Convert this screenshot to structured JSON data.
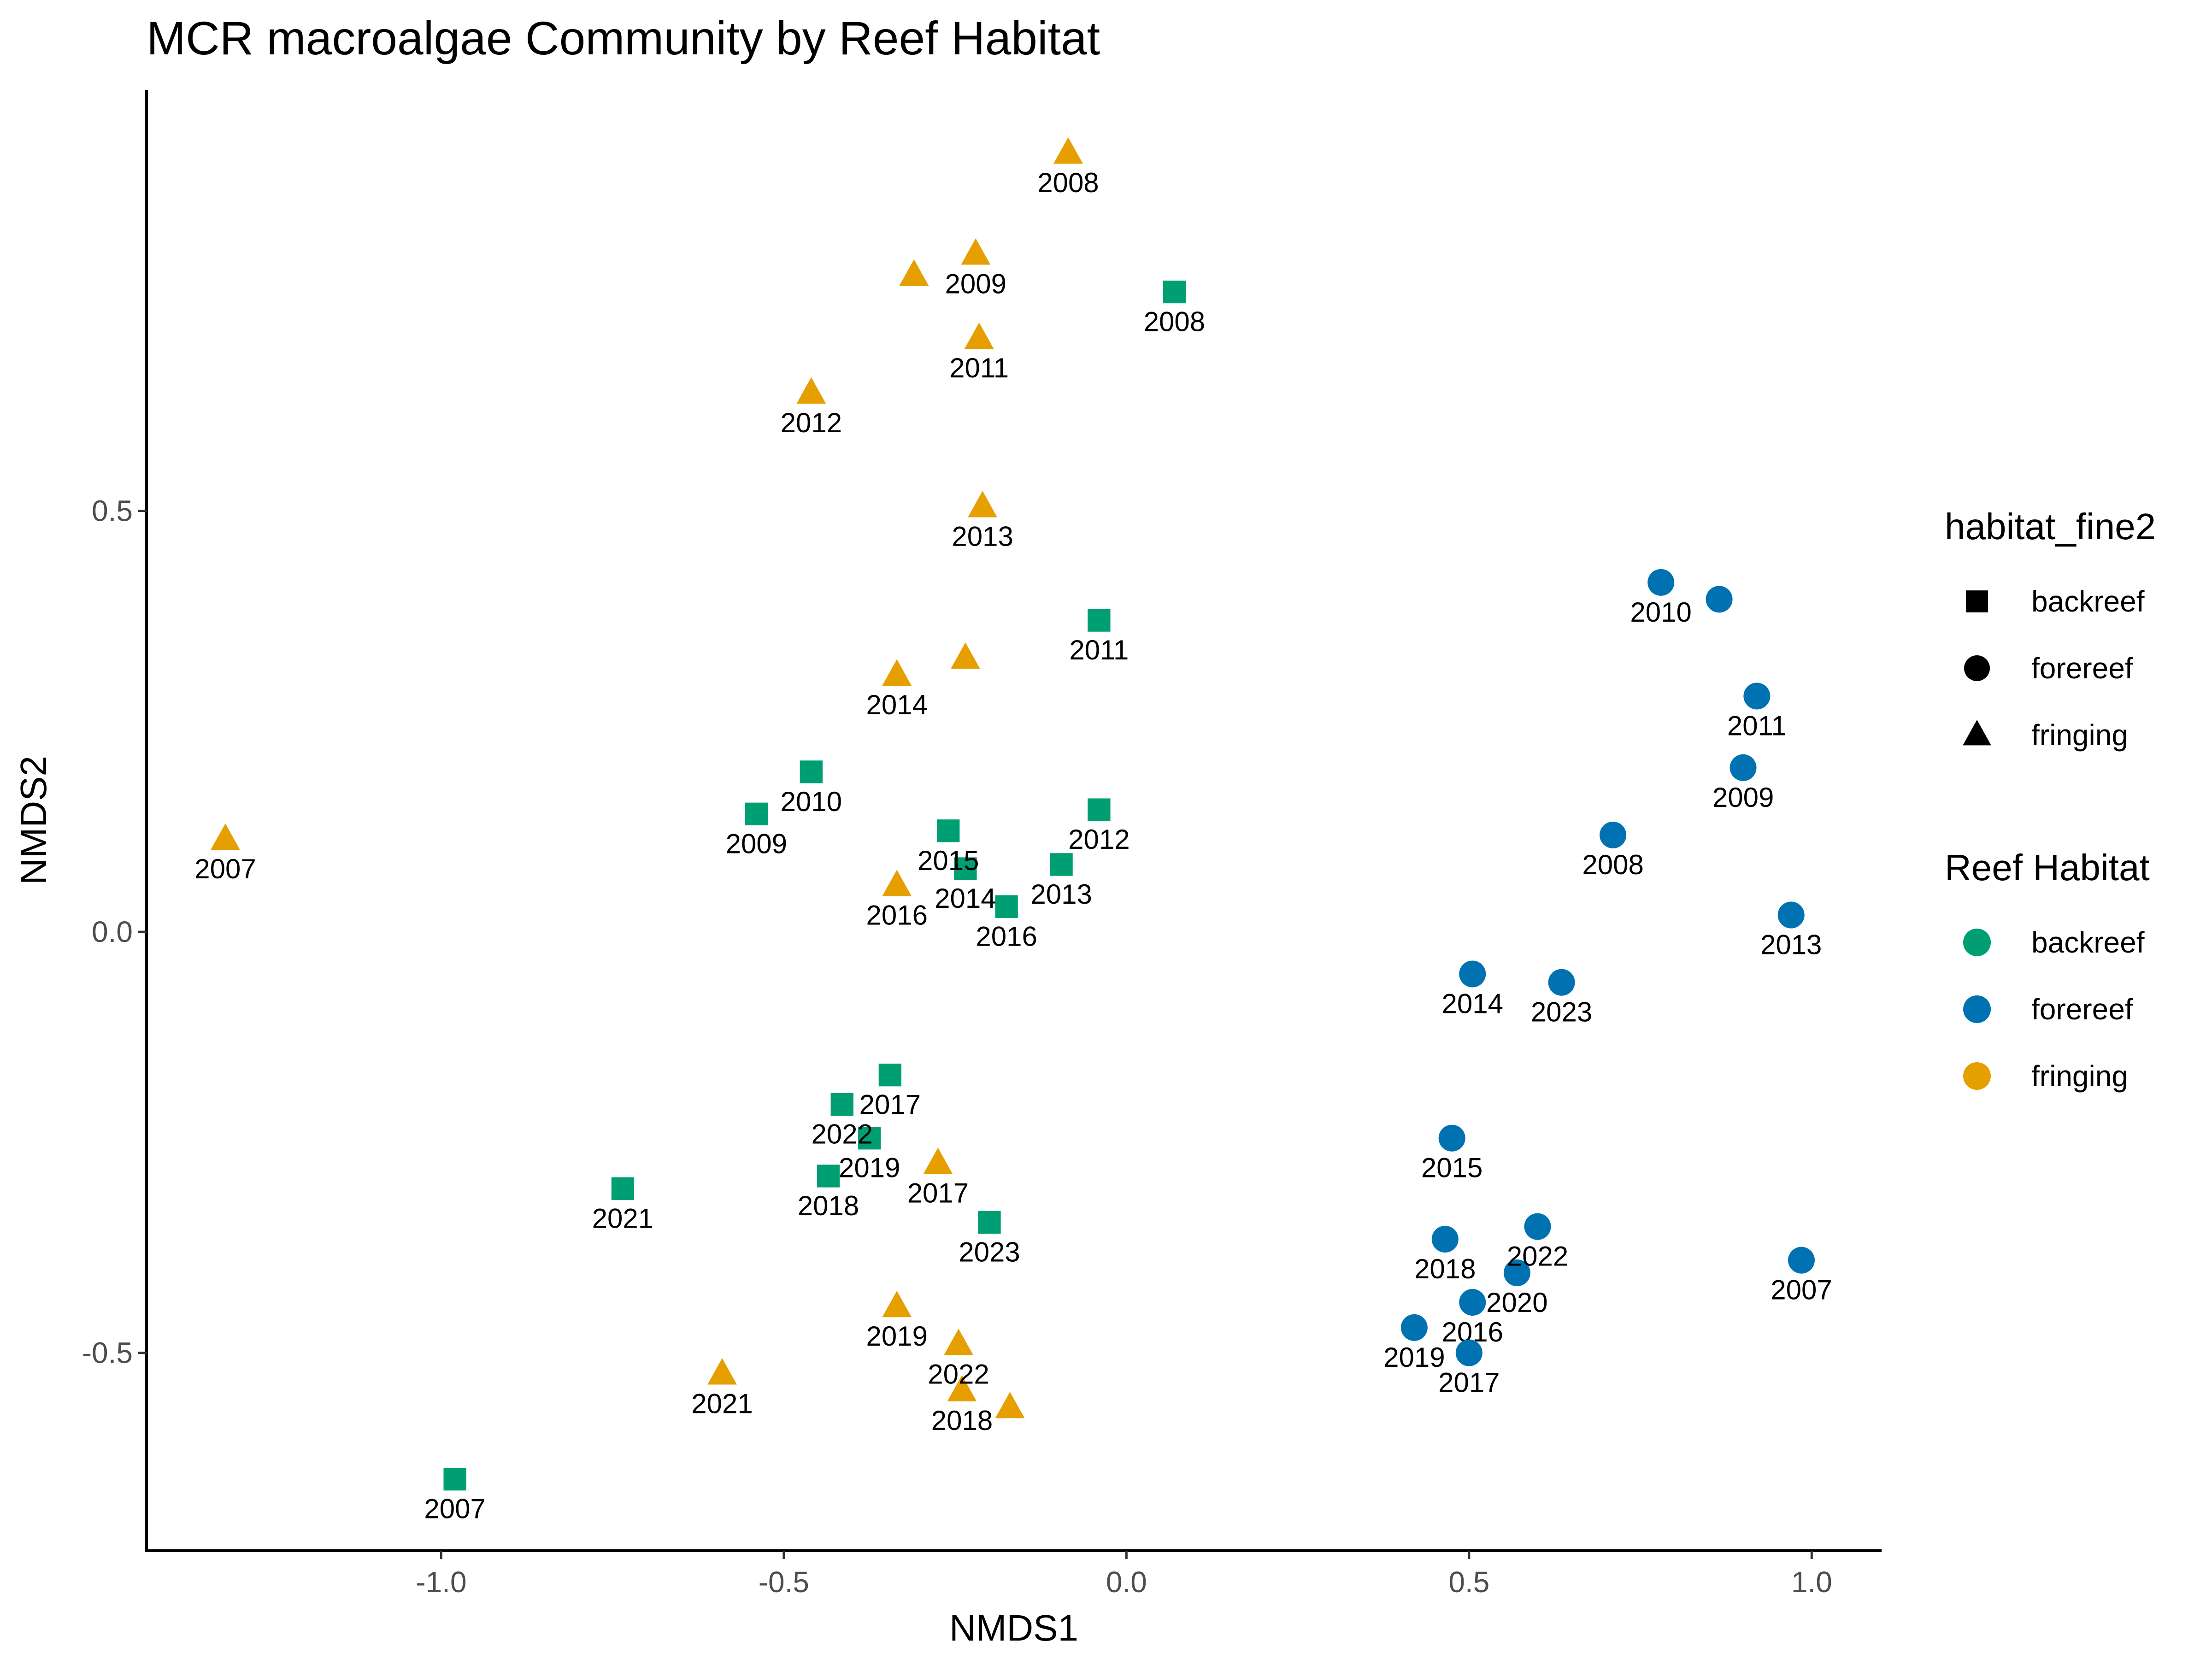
{
  "chart_data": {
    "type": "scatter",
    "title": "MCR macroalgae Community by Reef Habitat",
    "xlabel": "NMDS1",
    "ylabel": "NMDS2",
    "xlim": [
      -1.43,
      1.1
    ],
    "ylim": [
      -0.735,
      1.0
    ],
    "xticks": [
      -1.0,
      -0.5,
      0.0,
      0.5,
      1.0
    ],
    "xtick_labels": [
      "-1.0",
      "-0.5",
      "0.0",
      "0.5",
      "1.0"
    ],
    "yticks": [
      -0.5,
      0.0,
      0.5
    ],
    "ytick_labels": [
      "-0.5",
      "0.0",
      "0.5"
    ],
    "grid": false,
    "legend_position": "right",
    "colors": {
      "backreef": "#009E73",
      "forereef": "#0072B2",
      "fringing": "#E69F00"
    },
    "legends": [
      {
        "title": "habitat_fine2",
        "kind": "shape",
        "entries": [
          {
            "label": "backreef",
            "shape": "square"
          },
          {
            "label": "forereef",
            "shape": "circle"
          },
          {
            "label": "fringing",
            "shape": "triangle"
          }
        ]
      },
      {
        "title": "Reef Habitat",
        "kind": "color",
        "entries": [
          {
            "label": "backreef",
            "color": "#009E73"
          },
          {
            "label": "forereef",
            "color": "#0072B2"
          },
          {
            "label": "fringing",
            "color": "#E69F00"
          }
        ]
      }
    ],
    "series": [
      {
        "name": "backreef",
        "shape": "square",
        "color": "#009E73",
        "points": [
          {
            "x": -0.98,
            "y": -0.65,
            "label": "2007"
          },
          {
            "x": 0.07,
            "y": 0.76,
            "label": "2008"
          },
          {
            "x": -0.54,
            "y": 0.14,
            "label": "2009"
          },
          {
            "x": -0.46,
            "y": 0.19,
            "label": "2010"
          },
          {
            "x": -0.04,
            "y": 0.37,
            "label": "2011"
          },
          {
            "x": -0.04,
            "y": 0.145,
            "label": "2012"
          },
          {
            "x": -0.095,
            "y": 0.08,
            "label": "2013"
          },
          {
            "x": -0.235,
            "y": 0.075,
            "label": "2014"
          },
          {
            "x": -0.26,
            "y": 0.12,
            "label": "2015"
          },
          {
            "x": -0.175,
            "y": 0.03,
            "label": "2016"
          },
          {
            "x": -0.345,
            "y": -0.17,
            "label": "2017"
          },
          {
            "x": -0.435,
            "y": -0.29,
            "label": "2018"
          },
          {
            "x": -0.375,
            "y": -0.245,
            "label": "2019"
          },
          {
            "x": -0.735,
            "y": -0.305,
            "label": "2021"
          },
          {
            "x": -0.415,
            "y": -0.205,
            "label": "2022"
          },
          {
            "x": -0.2,
            "y": -0.345,
            "label": "2023"
          }
        ]
      },
      {
        "name": "forereef",
        "shape": "circle",
        "color": "#0072B2",
        "points": [
          {
            "x": 0.985,
            "y": -0.39,
            "label": "2007"
          },
          {
            "x": 0.71,
            "y": 0.115,
            "label": "2008"
          },
          {
            "x": 0.9,
            "y": 0.195,
            "label": "2009"
          },
          {
            "x": 0.78,
            "y": 0.415,
            "label": "2010"
          },
          {
            "x": 0.865,
            "y": 0.395,
            "label": ""
          },
          {
            "x": 0.92,
            "y": 0.28,
            "label": "2011"
          },
          {
            "x": 0.97,
            "y": 0.02,
            "label": "2013"
          },
          {
            "x": 0.505,
            "y": -0.05,
            "label": "2014"
          },
          {
            "x": 0.635,
            "y": -0.06,
            "label": "2023"
          },
          {
            "x": 0.475,
            "y": -0.245,
            "label": "2015"
          },
          {
            "x": 0.505,
            "y": -0.44,
            "label": "2016"
          },
          {
            "x": 0.5,
            "y": -0.5,
            "label": "2017"
          },
          {
            "x": 0.465,
            "y": -0.365,
            "label": "2018"
          },
          {
            "x": 0.42,
            "y": -0.47,
            "label": "2019"
          },
          {
            "x": 0.57,
            "y": -0.405,
            "label": "2020"
          },
          {
            "x": 0.6,
            "y": -0.35,
            "label": "2022"
          }
        ]
      },
      {
        "name": "fringing",
        "shape": "triangle",
        "color": "#E69F00",
        "points": [
          {
            "x": -1.315,
            "y": 0.11,
            "label": "2007"
          },
          {
            "x": -0.085,
            "y": 0.925,
            "label": "2008"
          },
          {
            "x": -0.22,
            "y": 0.805,
            "label": "2009"
          },
          {
            "x": -0.31,
            "y": 0.78,
            "label": ""
          },
          {
            "x": -0.215,
            "y": 0.705,
            "label": "2011"
          },
          {
            "x": -0.46,
            "y": 0.64,
            "label": "2012"
          },
          {
            "x": -0.21,
            "y": 0.505,
            "label": "2013"
          },
          {
            "x": -0.335,
            "y": 0.305,
            "label": "2014"
          },
          {
            "x": -0.235,
            "y": 0.325,
            "label": ""
          },
          {
            "x": -0.335,
            "y": 0.055,
            "label": "2016"
          },
          {
            "x": -0.275,
            "y": -0.275,
            "label": "2017"
          },
          {
            "x": -0.24,
            "y": -0.545,
            "label": "2018"
          },
          {
            "x": -0.335,
            "y": -0.445,
            "label": "2019"
          },
          {
            "x": -0.59,
            "y": -0.525,
            "label": "2021"
          },
          {
            "x": -0.245,
            "y": -0.49,
            "label": "2022"
          },
          {
            "x": -0.17,
            "y": -0.565,
            "label": ""
          }
        ]
      }
    ]
  }
}
